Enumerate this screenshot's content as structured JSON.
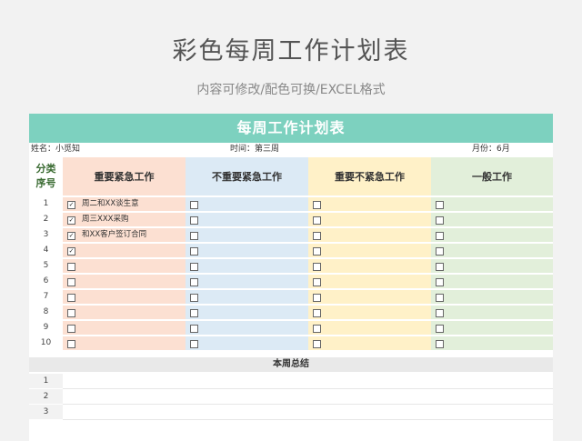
{
  "title": "彩色每周工作计划表",
  "subtitle": "内容可修改/配色可换/EXCEL格式",
  "sheet": {
    "banner": "每周工作计划表",
    "info": {
      "name": "姓名：小觅知",
      "time": "时间：第三周",
      "month": "月份：6月"
    },
    "header": {
      "seq_line1": "分类",
      "seq_line2": "序号",
      "col1": "重要紧急工作",
      "col2": "不重要紧急工作",
      "col3": "重要不紧急工作",
      "col4": "一般工作"
    },
    "rows": [
      {
        "num": "1",
        "checked": true,
        "task": "周二和XX谈生意"
      },
      {
        "num": "2",
        "checked": true,
        "task": "周三XXX采购"
      },
      {
        "num": "3",
        "checked": true,
        "task": "和XX客户签订合同"
      },
      {
        "num": "4",
        "checked": true,
        "task": ""
      },
      {
        "num": "5",
        "checked": false,
        "task": ""
      },
      {
        "num": "6",
        "checked": false,
        "task": ""
      },
      {
        "num": "7",
        "checked": false,
        "task": ""
      },
      {
        "num": "8",
        "checked": false,
        "task": ""
      },
      {
        "num": "9",
        "checked": false,
        "task": ""
      },
      {
        "num": "10",
        "checked": false,
        "task": ""
      }
    ],
    "summary": {
      "heading": "本周总结",
      "rows": [
        "1",
        "2",
        "3"
      ]
    }
  },
  "colors": {
    "banner": "#7dd1bf",
    "col1": "#fce0d2",
    "col2": "#dceaf5",
    "col3": "#fff1c8",
    "col4": "#e2efda"
  }
}
